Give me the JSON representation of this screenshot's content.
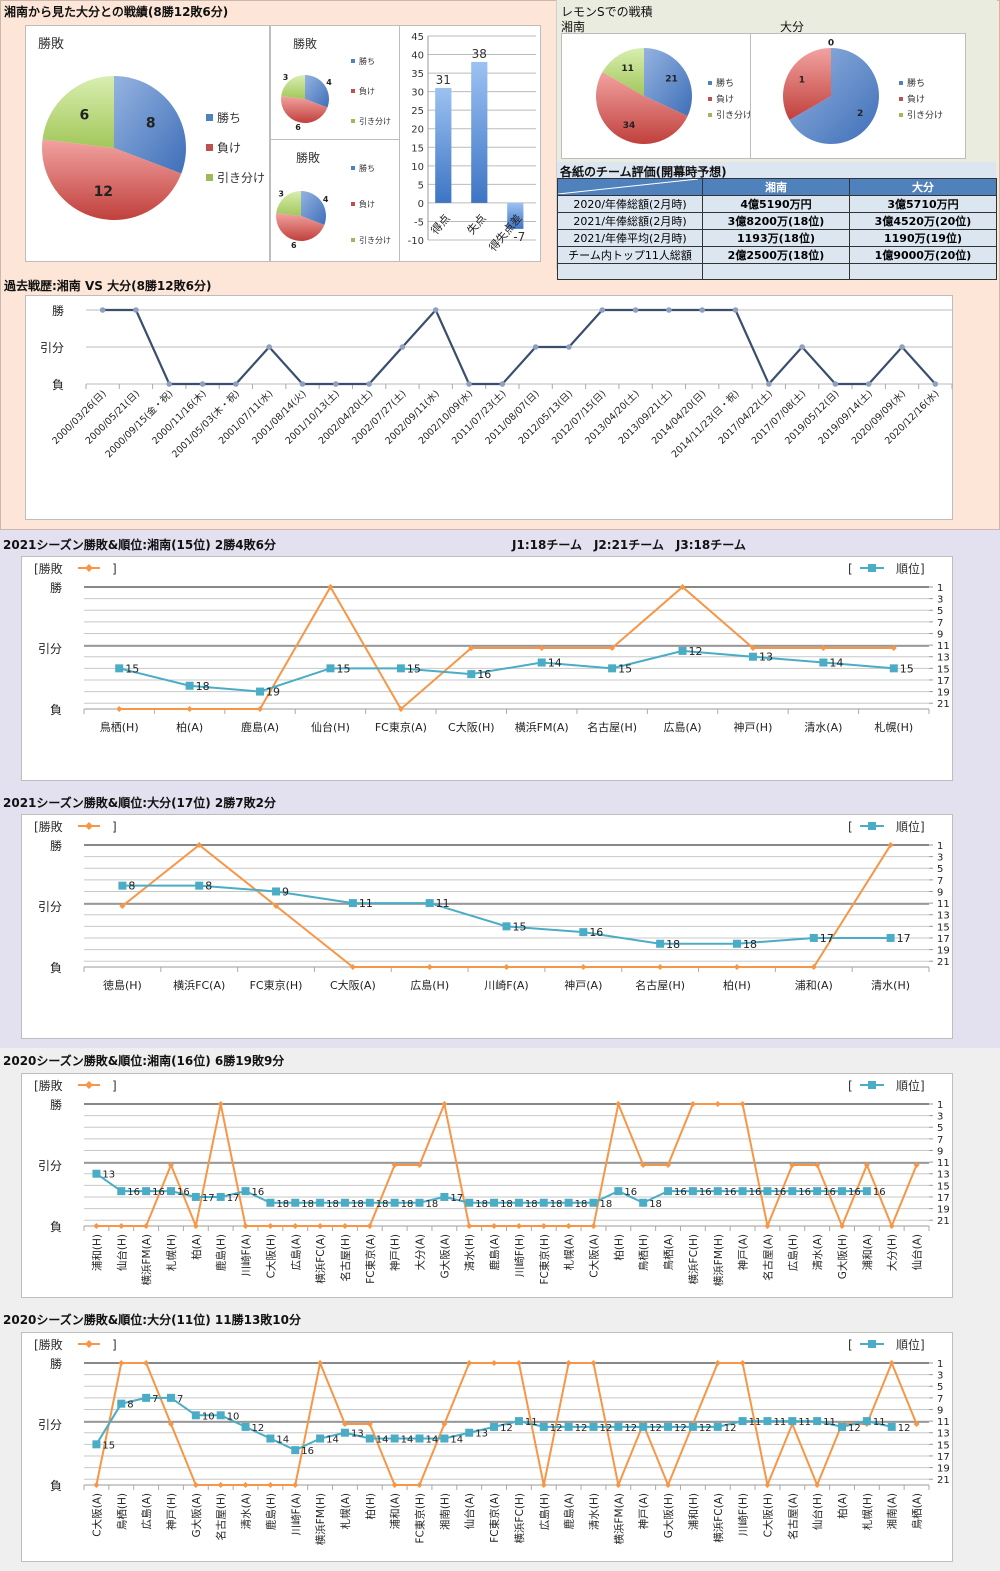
{
  "colors": {
    "win": "#4f81bd",
    "loss": "#c0504d",
    "draw": "#9bbb59",
    "bar": "#4f81bd",
    "history_line": "#3b4e6e",
    "result_line": "#f79646",
    "rank_line": "#4bacc6",
    "header_bg": "#4f81bd"
  },
  "sections": {
    "head_to_head_title": "湘南から見た大分との戦績(8勝12敗6分)",
    "lemon_title": "レモンSでの戦積",
    "lemon_shonan": "湘南",
    "lemon_oita": "大分",
    "eval_title": "各紙のチーム評価(開幕時予想)",
    "history_title": "過去戦歴:湘南 VS 大分(8勝12敗6分)",
    "shonan2021_title": "2021シーズン勝敗&順位:湘南(15位) 2勝4敗6分",
    "league_note": "J1:18チーム　J2:21チーム　J3:18チーム",
    "oita2021_title": "2021シーズン勝敗&順位:大分(17位) 2勝7敗2分",
    "shonan2020_title": "2020シーズン勝敗&順位:湘南(16位) 6勝19敗9分",
    "oita2020_title": "2020シーズン勝敗&順位:大分(11位) 11勝13敗10分"
  },
  "legend": {
    "win": "勝ち",
    "loss": "負け",
    "draw": "引き分け",
    "draw_truncated": "引き分け",
    "result_legend": "[勝敗",
    "result_close": "]",
    "rank_legend_open": "[",
    "rank_legend": "順位]"
  },
  "eval_table": {
    "headers": [
      "",
      "湘南",
      "大分"
    ],
    "rows": [
      [
        "2020/年俸総額(2月時)",
        "4億5190万円",
        "3億5710万円"
      ],
      [
        "2021/年俸総額(2月時)",
        "3億8200万(18位)",
        "3億4520万(20位)"
      ],
      [
        "2021/年俸平均(2月時)",
        "1193万(18位)",
        "1190万(19位)"
      ],
      [
        "チーム内トップ11人総額",
        "2億2500万(18位)",
        "1億9000万(20位)"
      ],
      [
        "",
        "",
        ""
      ]
    ]
  },
  "chart_data": [
    {
      "id": "h2h-pie",
      "type": "pie",
      "title": "勝敗",
      "categories": [
        "勝ち",
        "負け",
        "引き分け"
      ],
      "values": [
        8,
        12,
        6
      ]
    },
    {
      "id": "small-pie-1",
      "type": "pie",
      "title": "勝敗",
      "categories": [
        "勝ち",
        "負け",
        "引き分け"
      ],
      "values": [
        4,
        6,
        3
      ]
    },
    {
      "id": "small-pie-2",
      "type": "pie",
      "title": "勝敗",
      "categories": [
        "勝ち",
        "負け",
        "引き分け"
      ],
      "values": [
        4,
        6,
        3
      ]
    },
    {
      "id": "goals-bar",
      "type": "bar",
      "categories": [
        "得点",
        "失点",
        "得失点差"
      ],
      "values": [
        31,
        38,
        -7
      ],
      "ylim": [
        -10,
        45
      ],
      "yticks": [
        45,
        40,
        35,
        30,
        25,
        20,
        15,
        10,
        5,
        0,
        -5,
        -10
      ]
    },
    {
      "id": "lemon-shonan-pie",
      "type": "pie",
      "title": "湘南",
      "categories": [
        "勝ち",
        "負け",
        "引き分け"
      ],
      "values": [
        21,
        34,
        11
      ]
    },
    {
      "id": "lemon-oita-pie",
      "type": "pie",
      "title": "大分",
      "categories": [
        "勝ち",
        "負け",
        "引き分け"
      ],
      "values": [
        2,
        1,
        0
      ]
    },
    {
      "id": "history-line",
      "type": "line",
      "title": "過去戦歴:湘南 VS 大分(8勝12敗6分)",
      "ylabels": [
        "勝",
        "引分",
        "負"
      ],
      "x": [
        "2000/03/26(日)",
        "2000/05/21(日)",
        "2000/09/15(金・祝)",
        "2000/11/16(木)",
        "2001/05/03(木・祝)",
        "2001/07/11(水)",
        "2001/08/14(火)",
        "2001/10/13(土)",
        "2002/04/20(土)",
        "2002/07/27(土)",
        "2002/09/11(水)",
        "2002/10/09(水)",
        "2011/07/23(土)",
        "2011/08/07(日)",
        "2012/05/13(日)",
        "2012/07/15(日)",
        "2013/04/20(土)",
        "2013/09/21(土)",
        "2014/04/20(日)",
        "2014/11/23(日・祝)",
        "2017/04/22(土)",
        "2017/07/08(土)",
        "2019/05/12(日)",
        "2019/09/14(土)",
        "2020/09/09(水)",
        "2020/12/16(水)"
      ],
      "results": [
        "W",
        "W",
        "L",
        "L",
        "L",
        "D",
        "L",
        "L",
        "L",
        "D",
        "W",
        "L",
        "L",
        "D",
        "D",
        "W",
        "W",
        "W",
        "W",
        "W",
        "L",
        "D",
        "L",
        "L",
        "D",
        "L"
      ]
    },
    {
      "id": "shonan-2021",
      "type": "line",
      "title": "2021シーズン勝敗&順位:湘南(15位) 2勝4敗6分",
      "ylabels": [
        "勝",
        "引分",
        "負"
      ],
      "rank_ticks": [
        1,
        3,
        5,
        7,
        9,
        11,
        13,
        15,
        17,
        19,
        21
      ],
      "x": [
        "鳥栖(H)",
        "柏(A)",
        "鹿島(A)",
        "仙台(H)",
        "FC東京(A)",
        "C大阪(H)",
        "横浜FM(A)",
        "名古屋(H)",
        "広島(A)",
        "神戸(H)",
        "清水(A)",
        "札幌(H)"
      ],
      "results": [
        "L",
        "L",
        "L",
        "W",
        "L",
        "D",
        "D",
        "D",
        "W",
        "D",
        "D",
        "D"
      ],
      "ranks": [
        15,
        18,
        19,
        15,
        15,
        16,
        14,
        15,
        12,
        13,
        14,
        15
      ]
    },
    {
      "id": "oita-2021",
      "type": "line",
      "title": "2021シーズン勝敗&順位:大分(17位) 2勝7敗2分",
      "ylabels": [
        "勝",
        "引分",
        "負"
      ],
      "rank_ticks": [
        1,
        3,
        5,
        7,
        9,
        11,
        13,
        15,
        17,
        19,
        21
      ],
      "x": [
        "徳島(H)",
        "横浜FC(A)",
        "FC東京(H)",
        "C大阪(A)",
        "広島(H)",
        "川崎F(A)",
        "神戸(A)",
        "名古屋(H)",
        "柏(H)",
        "浦和(A)",
        "清水(H)"
      ],
      "results": [
        "D",
        "W",
        "D",
        "L",
        "L",
        "L",
        "L",
        "L",
        "L",
        "L",
        "W"
      ],
      "ranks": [
        8,
        8,
        9,
        11,
        11,
        15,
        16,
        18,
        18,
        17,
        17
      ]
    },
    {
      "id": "shonan-2020",
      "type": "line",
      "title": "2020シーズン勝敗&順位:湘南(16位) 6勝19敗9分",
      "ylabels": [
        "勝",
        "引分",
        "負"
      ],
      "rank_ticks": [
        1,
        3,
        5,
        7,
        9,
        11,
        13,
        15,
        17,
        19,
        21
      ],
      "x": [
        "浦和(H)",
        "仙台(H)",
        "横浜FM(A)",
        "札幌(H)",
        "柏(A)",
        "鹿島(H)",
        "川崎F(A)",
        "C大阪(H)",
        "広島(A)",
        "横浜FC(A)",
        "名古屋(H)",
        "FC東京(A)",
        "神戸(H)",
        "大分(A)",
        "G大阪(A)",
        "清水(H)",
        "鹿島(A)",
        "川崎F(H)",
        "FC東京(H)",
        "札幌(A)",
        "C大阪(A)",
        "柏(H)",
        "鳥栖(H)",
        "鳥栖(A)",
        "横浜FC(H)",
        "横浜FM(H)",
        "神戸(A)",
        "名古屋(A)",
        "広島(H)",
        "清水(A)",
        "G大阪(H)",
        "浦和(A)",
        "大分(H)",
        "仙台(A)"
      ],
      "results": [
        "L",
        "L",
        "L",
        "D",
        "L",
        "W",
        "L",
        "L",
        "L",
        "L",
        "L",
        "L",
        "D",
        "D",
        "W",
        "L",
        "L",
        "L",
        "L",
        "L",
        "L",
        "W",
        "D",
        "D",
        "W",
        "W",
        "W",
        "L",
        "D",
        "D",
        "L",
        "D",
        "L",
        "D"
      ],
      "ranks": [
        13,
        16,
        16,
        16,
        17,
        17,
        16,
        18,
        18,
        18,
        18,
        18,
        18,
        18,
        17,
        18,
        18,
        18,
        18,
        18,
        18,
        16,
        18,
        16,
        16,
        16,
        16,
        16,
        16,
        16,
        16,
        16,
        null,
        null
      ]
    },
    {
      "id": "oita-2020",
      "type": "line",
      "title": "2020シーズン勝敗&順位:大分(11位) 11勝13敗10分",
      "ylabels": [
        "勝",
        "引分",
        "負"
      ],
      "rank_ticks": [
        1,
        3,
        5,
        7,
        9,
        11,
        13,
        15,
        17,
        19,
        21
      ],
      "x": [
        "C大阪(A)",
        "鳥栖(H)",
        "広島(A)",
        "神戸(H)",
        "G大阪(A)",
        "名古屋(H)",
        "清水(A)",
        "鹿島(H)",
        "川崎F(A)",
        "横浜FM(H)",
        "札幌(A)",
        "柏(H)",
        "浦和(A)",
        "FC東京(H)",
        "湘南(H)",
        "仙台(A)",
        "FC東京(A)",
        "横浜FC(H)",
        "広島(H)",
        "鹿島(A)",
        "清水(H)",
        "横浜FM(A)",
        "神戸(A)",
        "G大阪(H)",
        "浦和(H)",
        "横浜FC(A)",
        "川崎F(H)",
        "C大阪(H)",
        "名古屋(A)",
        "仙台(H)",
        "柏(A)",
        "札幌(H)",
        "湘南(A)",
        "鳥栖(A)"
      ],
      "results": [
        "L",
        "W",
        "W",
        "D",
        "L",
        "L",
        "L",
        "L",
        "L",
        "W",
        "D",
        "D",
        "L",
        "L",
        "D",
        "W",
        "W",
        "W",
        "L",
        "W",
        "W",
        "L",
        "D",
        "L",
        "D",
        "W",
        "W",
        "L",
        "D",
        "L",
        "D",
        "D",
        "W",
        "D"
      ],
      "ranks": [
        15,
        8,
        7,
        7,
        10,
        10,
        12,
        14,
        16,
        14,
        13,
        14,
        14,
        14,
        14,
        13,
        12,
        11,
        12,
        12,
        12,
        12,
        12,
        12,
        12,
        12,
        11,
        11,
        11,
        11,
        12,
        11,
        12,
        null
      ]
    }
  ]
}
